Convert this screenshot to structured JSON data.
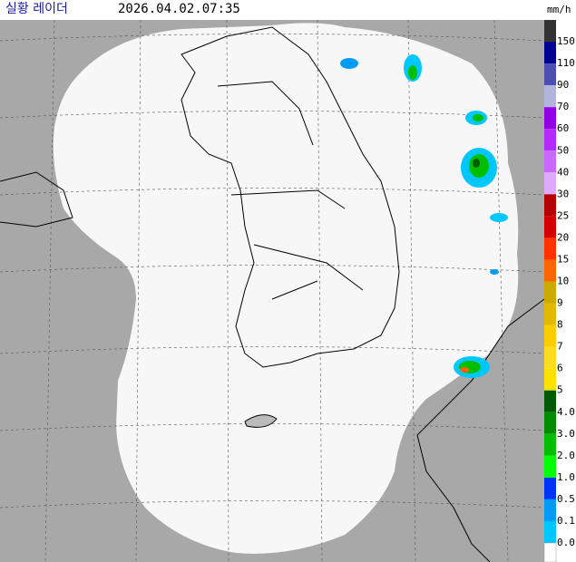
{
  "header": {
    "title": "실황 레이더",
    "timestamp": "2026.04.02.07:35",
    "unit": "mm/h"
  },
  "legend": {
    "entries": [
      {
        "label": "150",
        "color": "#333333"
      },
      {
        "label": "110",
        "color": "#000390"
      },
      {
        "label": "90",
        "color": "#4c4eb1"
      },
      {
        "label": "70",
        "color": "#b3b4de"
      },
      {
        "label": "60",
        "color": "#9300e4"
      },
      {
        "label": "50",
        "color": "#b329ff"
      },
      {
        "label": "40",
        "color": "#c969ff"
      },
      {
        "label": "30",
        "color": "#dfa9ff"
      },
      {
        "label": "25",
        "color": "#b40000"
      },
      {
        "label": "20",
        "color": "#d20000"
      },
      {
        "label": "15",
        "color": "#ff3300"
      },
      {
        "label": "10",
        "color": "#ff6600"
      },
      {
        "label": "9",
        "color": "#ccaa00"
      },
      {
        "label": "8",
        "color": "#e0b900"
      },
      {
        "label": "7",
        "color": "#f9cd00"
      },
      {
        "label": "6",
        "color": "#ffdc1f"
      },
      {
        "label": "5",
        "color": "#ffe100"
      },
      {
        "label": "4.0",
        "color": "#005a00"
      },
      {
        "label": "3.0",
        "color": "#008c00"
      },
      {
        "label": "2.0",
        "color": "#00be00"
      },
      {
        "label": "1.0",
        "color": "#00ff00"
      },
      {
        "label": "0.5",
        "color": "#0033f5"
      },
      {
        "label": "0.1",
        "color": "#009bf5"
      },
      {
        "label": "0.0",
        "color": "#00c8ff"
      }
    ]
  }
}
